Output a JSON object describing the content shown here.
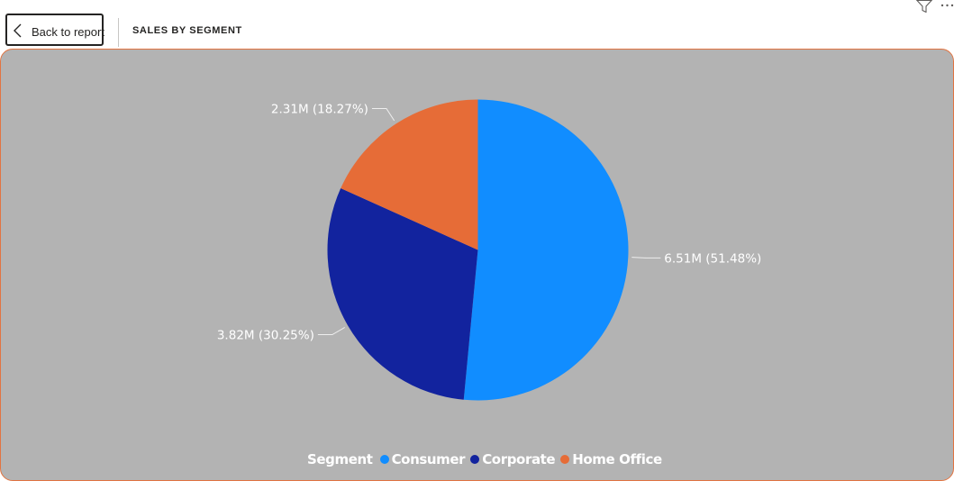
{
  "header": {
    "back_label": "Back to report",
    "page_title": "SALES BY SEGMENT"
  },
  "icons": {
    "back": "chevron-left-icon",
    "filter": "filter-icon",
    "more": "more-options-icon"
  },
  "colors": {
    "visual_background": "#b3b3b3",
    "visual_border": "#e27441",
    "Consumer": "#118dff",
    "Corporate": "#12239e",
    "Home Office": "#e66c37"
  },
  "chart_data": {
    "type": "pie",
    "legend_title": "Segment",
    "legend_position": "bottom-center",
    "categories": [
      "Consumer",
      "Corporate",
      "Home Office"
    ],
    "values": [
      6.51,
      3.82,
      2.31
    ],
    "percentages": [
      51.48,
      30.25,
      18.27
    ],
    "value_unit": "M",
    "data_labels": [
      "6.51M (51.48%)",
      "3.82M (30.25%)",
      "2.31M (18.27%)"
    ]
  }
}
